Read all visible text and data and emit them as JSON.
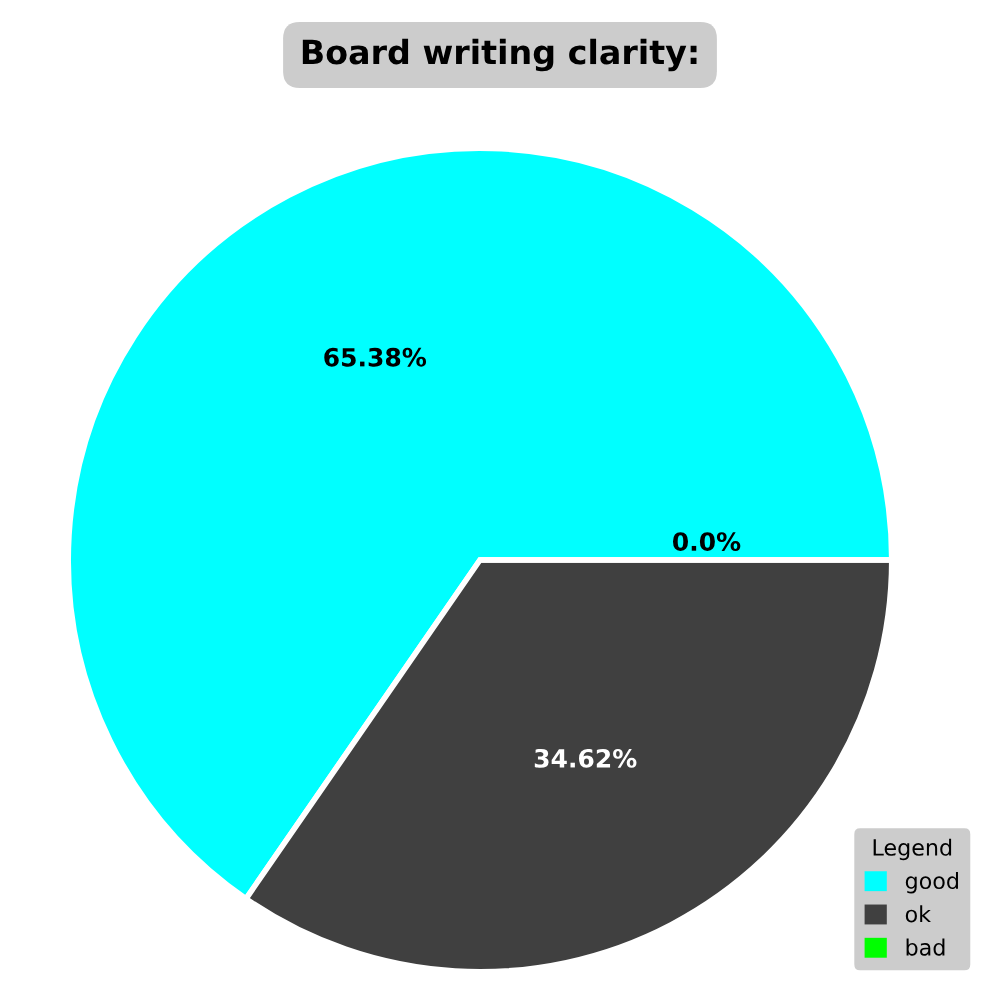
{
  "chart_data": {
    "type": "pie",
    "title": "Board writing clarity:",
    "categories": [
      "good",
      "ok",
      "bad"
    ],
    "values": [
      65.38,
      34.62,
      0.0
    ],
    "colors": [
      "#00ffff",
      "#404040",
      "#00ff00"
    ],
    "value_labels": [
      "65.38%",
      "34.62%",
      "0.0%"
    ],
    "legend": "bottom right",
    "legend_title": "Legend"
  }
}
